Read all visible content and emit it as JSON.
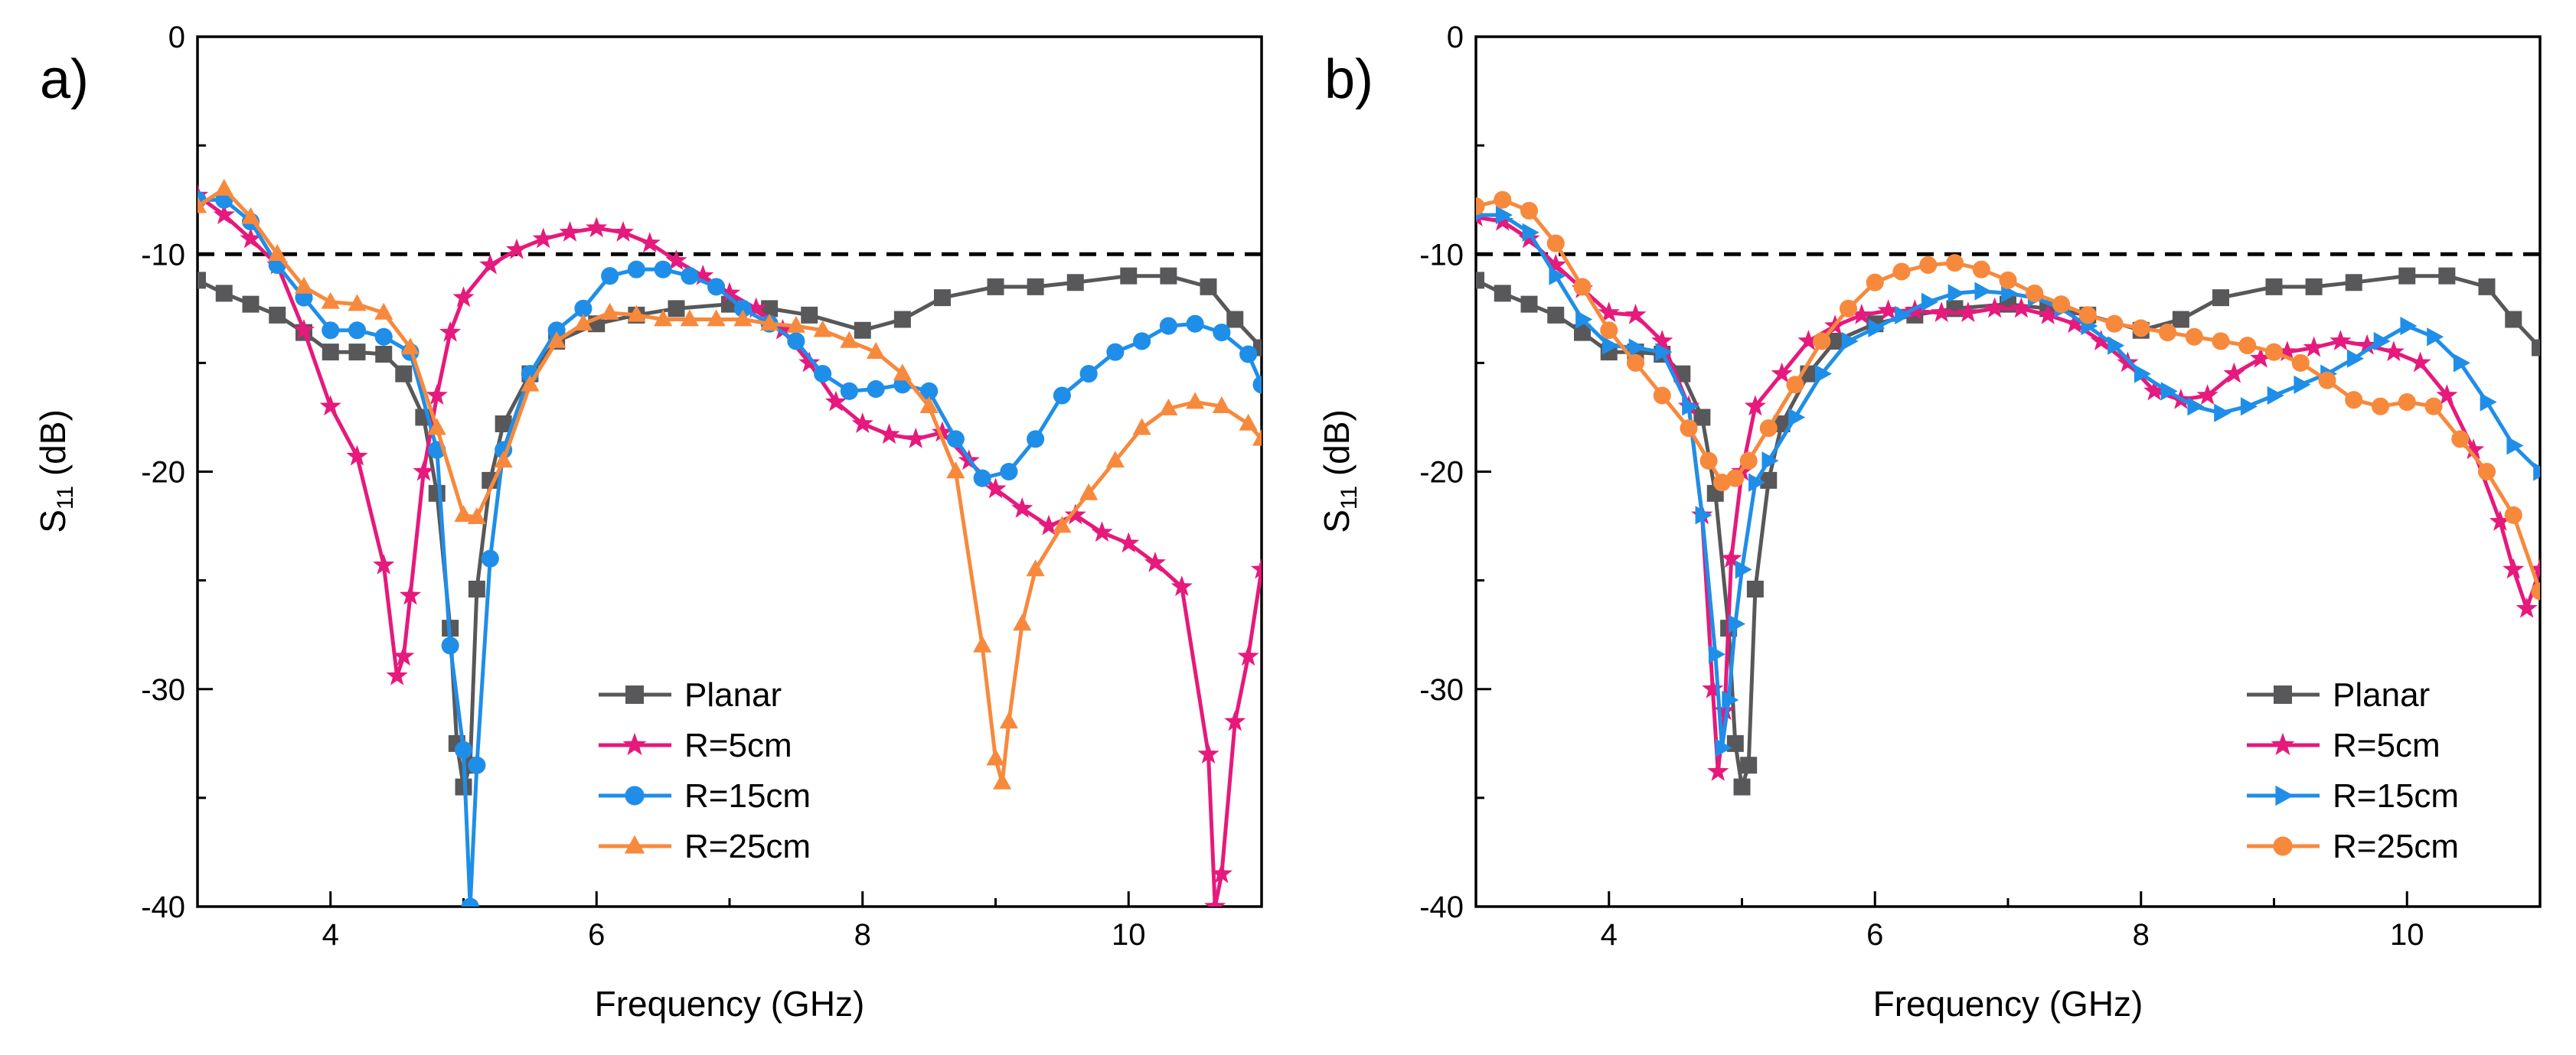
{
  "chart_data": [
    {
      "panel_label": "a)",
      "type": "line",
      "xlabel": "Frequency (GHz)",
      "ylabel_main": "S",
      "ylabel_sub": "11",
      "ylabel_unit": " (dB)",
      "xlim": [
        3,
        11
      ],
      "ylim": [
        -40,
        0
      ],
      "xticks": [
        4,
        6,
        8,
        10
      ],
      "yticks": [
        0,
        -10,
        -20,
        -30,
        -40
      ],
      "threshold": -10,
      "legend_position": "bottom-center",
      "series": [
        {
          "name": "Planar",
          "color": "#58585a",
          "marker": "square",
          "x": [
            3.0,
            3.2,
            3.4,
            3.6,
            3.8,
            4.0,
            4.2,
            4.4,
            4.55,
            4.7,
            4.8,
            4.9,
            4.95,
            5.0,
            5.05,
            5.1,
            5.2,
            5.3,
            5.5,
            5.7,
            6.0,
            6.3,
            6.6,
            7.0,
            7.3,
            7.6,
            8.0,
            8.3,
            8.6,
            9.0,
            9.3,
            9.6,
            10.0,
            10.3,
            10.6,
            10.8,
            11.0
          ],
          "y": [
            -11.2,
            -11.8,
            -12.3,
            -12.8,
            -13.6,
            -14.5,
            -14.5,
            -14.6,
            -15.5,
            -17.5,
            -21,
            -27.2,
            -32.5,
            -34.5,
            -33.5,
            -25.4,
            -20.4,
            -17.8,
            -15.5,
            -14,
            -13.2,
            -12.8,
            -12.5,
            -12.3,
            -12.5,
            -12.8,
            -13.5,
            -13,
            -12,
            -11.5,
            -11.5,
            -11.3,
            -11,
            -11,
            -11.5,
            -13,
            -14.3
          ]
        },
        {
          "name": "R=5cm",
          "color": "#e6197c",
          "marker": "star",
          "x": [
            3.0,
            3.2,
            3.4,
            3.6,
            3.8,
            4.0,
            4.2,
            4.4,
            4.5,
            4.55,
            4.6,
            4.7,
            4.8,
            4.9,
            5.0,
            5.2,
            5.4,
            5.6,
            5.8,
            6.0,
            6.2,
            6.4,
            6.6,
            6.8,
            7.0,
            7.2,
            7.4,
            7.6,
            7.8,
            8.0,
            8.2,
            8.4,
            8.6,
            8.8,
            9.0,
            9.2,
            9.4,
            9.6,
            9.8,
            10.0,
            10.2,
            10.4,
            10.6,
            10.65,
            10.7,
            10.8,
            10.9,
            11.0
          ],
          "y": [
            -7.3,
            -8.2,
            -9.3,
            -10.5,
            -13.5,
            -17,
            -19.3,
            -24.3,
            -29.4,
            -28.5,
            -25.7,
            -20,
            -16.5,
            -13.6,
            -12,
            -10.5,
            -9.8,
            -9.3,
            -9,
            -8.8,
            -9,
            -9.5,
            -10.3,
            -11,
            -11.8,
            -12.5,
            -13.5,
            -15,
            -16.8,
            -17.8,
            -18.3,
            -18.5,
            -18.2,
            -19.5,
            -20.8,
            -21.7,
            -22.5,
            -22,
            -22.8,
            -23.3,
            -24.2,
            -25.3,
            -33,
            -40,
            -38.5,
            -31.5,
            -28.5,
            -24.5
          ]
        },
        {
          "name": "R=15cm",
          "color": "#1f8ee8",
          "marker": "circle",
          "x": [
            3.0,
            3.2,
            3.4,
            3.6,
            3.8,
            4.0,
            4.2,
            4.4,
            4.6,
            4.8,
            4.9,
            5.0,
            5.05,
            5.1,
            5.2,
            5.3,
            5.5,
            5.7,
            5.9,
            6.1,
            6.3,
            6.5,
            6.7,
            6.9,
            7.1,
            7.3,
            7.5,
            7.7,
            7.9,
            8.1,
            8.3,
            8.5,
            8.7,
            8.9,
            9.1,
            9.3,
            9.5,
            9.7,
            9.9,
            10.1,
            10.3,
            10.5,
            10.7,
            10.9,
            11.0
          ],
          "y": [
            -7.5,
            -7.5,
            -8.5,
            -10.5,
            -12,
            -13.5,
            -13.5,
            -13.8,
            -14.5,
            -19,
            -28,
            -32.8,
            -40,
            -33.5,
            -24,
            -19,
            -15.5,
            -13.5,
            -12.5,
            -11,
            -10.7,
            -10.7,
            -11,
            -11.5,
            -12.5,
            -13.2,
            -14,
            -15.5,
            -16.3,
            -16.2,
            -16,
            -16.3,
            -18.5,
            -20.3,
            -20,
            -18.5,
            -16.5,
            -15.5,
            -14.5,
            -14,
            -13.3,
            -13.2,
            -13.6,
            -14.6,
            -16
          ]
        },
        {
          "name": "R=25cm",
          "color": "#f7893d",
          "marker": "triangle",
          "x": [
            3.0,
            3.2,
            3.4,
            3.6,
            3.8,
            4.0,
            4.2,
            4.4,
            4.6,
            4.8,
            5.0,
            5.1,
            5.3,
            5.5,
            5.7,
            5.9,
            6.1,
            6.3,
            6.5,
            6.7,
            6.9,
            7.1,
            7.3,
            7.5,
            7.7,
            7.9,
            8.1,
            8.3,
            8.5,
            8.7,
            8.9,
            9.0,
            9.05,
            9.1,
            9.2,
            9.3,
            9.5,
            9.7,
            9.9,
            10.1,
            10.3,
            10.5,
            10.7,
            10.9,
            11.0
          ],
          "y": [
            -7.8,
            -7,
            -8.3,
            -10,
            -11.5,
            -12.2,
            -12.3,
            -12.7,
            -14.3,
            -18,
            -22,
            -22.1,
            -19.5,
            -16,
            -14,
            -13.2,
            -12.7,
            -12.8,
            -13,
            -13,
            -13,
            -13,
            -13.2,
            -13.3,
            -13.5,
            -14,
            -14.5,
            -15.5,
            -17,
            -20,
            -28,
            -33.2,
            -34.3,
            -31.5,
            -27,
            -24.5,
            -22.5,
            -21,
            -19.5,
            -18,
            -17.1,
            -16.8,
            -17,
            -17.8,
            -18.5
          ]
        }
      ]
    },
    {
      "panel_label": "b)",
      "type": "line",
      "xlabel": "Frequency (GHz)",
      "ylabel_main": "S",
      "ylabel_sub": "11",
      "ylabel_unit": " (dB)",
      "xlim": [
        3,
        11
      ],
      "ylim": [
        -40,
        0
      ],
      "xticks": [
        4,
        6,
        8,
        10
      ],
      "yticks": [
        0,
        -10,
        -20,
        -30,
        -40
      ],
      "threshold": -10,
      "legend_position": "bottom-right",
      "series": [
        {
          "name": "Planar",
          "color": "#58585a",
          "marker": "square",
          "x": [
            3.0,
            3.2,
            3.4,
            3.6,
            3.8,
            4.0,
            4.2,
            4.4,
            4.55,
            4.7,
            4.8,
            4.9,
            4.95,
            5.0,
            5.05,
            5.1,
            5.2,
            5.3,
            5.5,
            5.7,
            6.0,
            6.3,
            6.6,
            7.0,
            7.3,
            7.6,
            8.0,
            8.3,
            8.6,
            9.0,
            9.3,
            9.6,
            10.0,
            10.3,
            10.6,
            10.8,
            11.0
          ],
          "y": [
            -11.2,
            -11.8,
            -12.3,
            -12.8,
            -13.6,
            -14.5,
            -14.5,
            -14.6,
            -15.5,
            -17.5,
            -21,
            -27.2,
            -32.5,
            -34.5,
            -33.5,
            -25.4,
            -20.4,
            -17.8,
            -15.5,
            -14,
            -13.2,
            -12.8,
            -12.5,
            -12.3,
            -12.5,
            -12.8,
            -13.5,
            -13,
            -12,
            -11.5,
            -11.5,
            -11.3,
            -11,
            -11,
            -11.5,
            -13,
            -14.3
          ]
        },
        {
          "name": "R=5cm",
          "color": "#e6197c",
          "marker": "star",
          "x": [
            3.0,
            3.2,
            3.4,
            3.6,
            3.8,
            4.0,
            4.2,
            4.4,
            4.6,
            4.7,
            4.78,
            4.82,
            4.87,
            4.92,
            5.0,
            5.1,
            5.3,
            5.5,
            5.7,
            5.9,
            6.1,
            6.3,
            6.5,
            6.7,
            6.9,
            7.1,
            7.3,
            7.5,
            7.7,
            7.9,
            8.1,
            8.3,
            8.5,
            8.7,
            8.9,
            9.1,
            9.3,
            9.5,
            9.7,
            9.9,
            10.1,
            10.3,
            10.5,
            10.7,
            10.8,
            10.9,
            11.0
          ],
          "y": [
            -8.3,
            -8.5,
            -9.3,
            -10.5,
            -11.6,
            -12.7,
            -12.8,
            -14,
            -17,
            -22,
            -30,
            -33.8,
            -31,
            -24,
            -20,
            -17,
            -15.5,
            -14,
            -13.3,
            -12.8,
            -12.6,
            -12.6,
            -12.7,
            -12.7,
            -12.5,
            -12.5,
            -12.8,
            -13.2,
            -14,
            -15,
            -16.3,
            -16.7,
            -16.5,
            -15.5,
            -14.8,
            -14.5,
            -14.3,
            -14,
            -14.2,
            -14.5,
            -15,
            -16.5,
            -19,
            -22.3,
            -24.5,
            -26.3,
            -24.5
          ]
        },
        {
          "name": "R=15cm",
          "color": "#1f8ee8",
          "marker": "triangle-right",
          "x": [
            3.0,
            3.2,
            3.4,
            3.6,
            3.8,
            4.0,
            4.2,
            4.4,
            4.6,
            4.7,
            4.8,
            4.85,
            4.9,
            4.95,
            5.0,
            5.1,
            5.2,
            5.4,
            5.6,
            5.8,
            6.0,
            6.2,
            6.4,
            6.6,
            6.8,
            7.0,
            7.2,
            7.4,
            7.6,
            7.8,
            8.0,
            8.2,
            8.4,
            8.6,
            8.8,
            9.0,
            9.2,
            9.4,
            9.6,
            9.8,
            10.0,
            10.2,
            10.4,
            10.6,
            10.8,
            11.0
          ],
          "y": [
            -8.2,
            -8.2,
            -9,
            -11,
            -13,
            -14.2,
            -14.3,
            -14.5,
            -17,
            -22,
            -28.4,
            -32.7,
            -30.5,
            -27,
            -24.5,
            -20.5,
            -19.5,
            -17.5,
            -15.5,
            -14,
            -13.4,
            -12.8,
            -12.2,
            -11.8,
            -11.7,
            -11.8,
            -12,
            -12.5,
            -13.3,
            -14.2,
            -15.5,
            -16.3,
            -17,
            -17.3,
            -17,
            -16.5,
            -16,
            -15.5,
            -14.8,
            -14,
            -13.3,
            -13.8,
            -15,
            -16.8,
            -18.8,
            -20
          ]
        },
        {
          "name": "R=25cm",
          "color": "#f7893d",
          "marker": "circle",
          "x": [
            3.0,
            3.2,
            3.4,
            3.6,
            3.8,
            4.0,
            4.2,
            4.4,
            4.6,
            4.75,
            4.85,
            4.95,
            5.05,
            5.2,
            5.4,
            5.6,
            5.8,
            6.0,
            6.2,
            6.4,
            6.6,
            6.8,
            7.0,
            7.2,
            7.4,
            7.6,
            7.8,
            8.0,
            8.2,
            8.4,
            8.6,
            8.8,
            9.0,
            9.2,
            9.4,
            9.6,
            9.8,
            10.0,
            10.2,
            10.4,
            10.6,
            10.8,
            11.0
          ],
          "y": [
            -7.8,
            -7.5,
            -8,
            -9.5,
            -11.5,
            -13.5,
            -15,
            -16.5,
            -18,
            -19.5,
            -20.5,
            -20.3,
            -19.5,
            -18,
            -16,
            -14,
            -12.5,
            -11.3,
            -10.8,
            -10.5,
            -10.4,
            -10.7,
            -11.2,
            -11.8,
            -12.3,
            -12.8,
            -13.2,
            -13.4,
            -13.6,
            -13.8,
            -14,
            -14.2,
            -14.5,
            -15,
            -15.8,
            -16.7,
            -17,
            -16.8,
            -17,
            -18.5,
            -20,
            -22,
            -25.5
          ]
        }
      ]
    }
  ]
}
